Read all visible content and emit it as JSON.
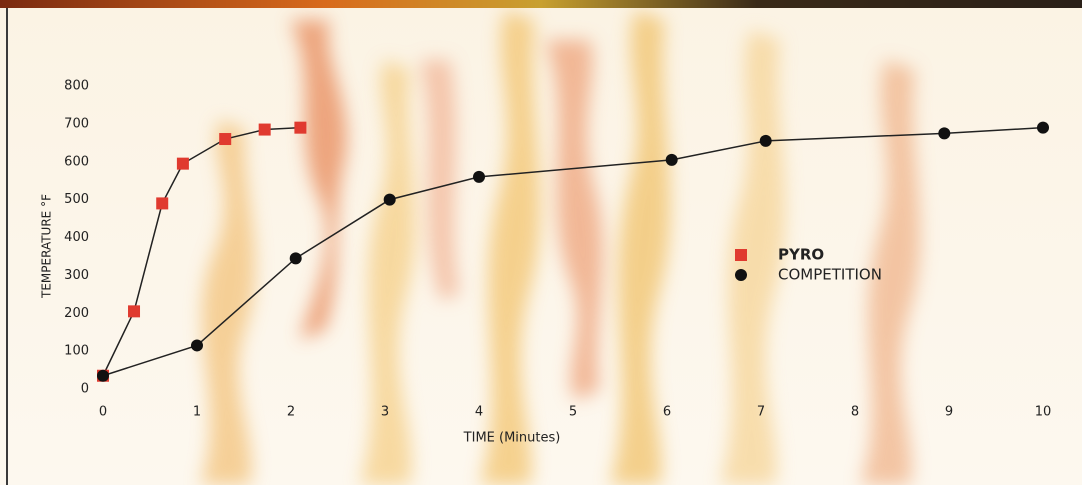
{
  "chart_data": {
    "type": "line",
    "x_label": "TIME (Minutes)",
    "y_label": "TEMPERATURE °F",
    "xlim": [
      0,
      10
    ],
    "xticks": [
      0,
      1,
      2,
      3,
      4,
      5,
      6,
      7,
      8,
      9,
      10
    ],
    "ylim": [
      0,
      800
    ],
    "yticks": [
      0,
      100,
      200,
      300,
      400,
      500,
      600,
      700,
      800
    ],
    "grid": false,
    "legend": "right",
    "series": [
      {
        "name": "PYRO",
        "color": "#e03a2f",
        "marker": "square",
        "x": [
          0,
          0.33,
          0.63,
          0.85,
          1.3,
          1.72,
          2.1
        ],
        "values": [
          35,
          205,
          490,
          595,
          660,
          685,
          690
        ]
      },
      {
        "name": "COMPETITION",
        "color": "#111111",
        "marker": "circle",
        "x": [
          0,
          1,
          2.05,
          3.05,
          4,
          6.05,
          7.05,
          8.95,
          10
        ],
        "values": [
          35,
          115,
          345,
          500,
          560,
          605,
          655,
          675,
          690
        ]
      }
    ]
  }
}
